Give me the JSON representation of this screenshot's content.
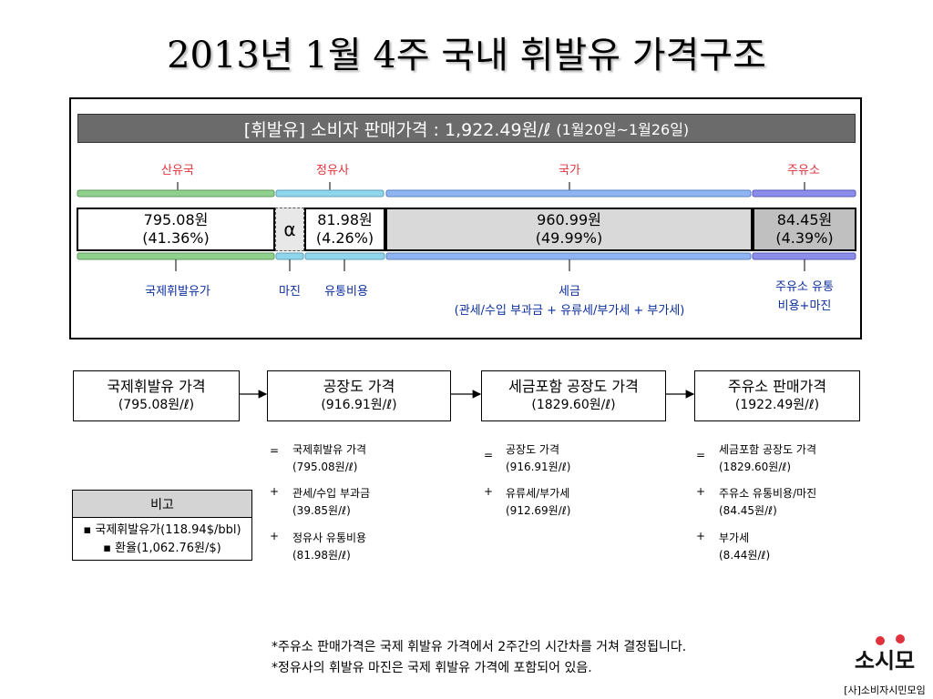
{
  "title": "2013년 1월 4주 국내 휘발유 가격구조",
  "header": {
    "main": "[휘발유] 소비자 판매가격 : 1,922.49원/ℓ",
    "period": "(1월20일~1월26일)"
  },
  "categories": {
    "oil_country": "산유국",
    "refiner": "정유사",
    "government": "국가",
    "gas_station": "주유소"
  },
  "segments": {
    "crude": {
      "value": "795.08원",
      "pct": "(41.36%)",
      "share": 41.36
    },
    "alpha": {
      "symbol": "α"
    },
    "refiner": {
      "value": "81.98원",
      "pct": "(4.26%)",
      "share": 4.26
    },
    "tax": {
      "value": "960.99원",
      "pct": "(49.99%)",
      "share": 49.99
    },
    "station": {
      "value": "84.45원",
      "pct": "(4.39%)",
      "share": 4.39
    }
  },
  "segment_notes": {
    "intl_price": "국제휘발유가",
    "margin": "마진",
    "dist_cost": "유통비용",
    "tax_line1": "세금",
    "tax_line2": "(관세/수입 부과금 + 유류세/부가세 + 부가세)",
    "station_line1": "주유소 유통",
    "station_line2": "비용+마진"
  },
  "flow": [
    {
      "name": "국제휘발유 가격",
      "value": "(795.08원/ℓ)"
    },
    {
      "name": "공장도 가격",
      "value": "(916.91원/ℓ)"
    },
    {
      "name": "세금포함 공장도 가격",
      "value": "(1829.60원/ℓ)"
    },
    {
      "name": "주유소 판매가격",
      "value": "(1922.49원/ℓ)"
    }
  ],
  "breakdown": {
    "col1": [
      {
        "op": "=",
        "line1": "국제휘발유 가격",
        "line2": "(795.08원/ℓ)"
      },
      {
        "op": "+",
        "line1": "관세/수입 부과금",
        "line2": "(39.85원/ℓ)"
      },
      {
        "op": "+",
        "line1": "정유사 유통비용",
        "line2": "(81.98원/ℓ)"
      }
    ],
    "col2": [
      {
        "op": "=",
        "line1": "공장도 가격",
        "line2": "(916.91원/ℓ)"
      },
      {
        "op": "+",
        "line1": "유류세/부가세",
        "line2": "(912.69원/ℓ)"
      }
    ],
    "col3": [
      {
        "op": "=",
        "line1": "세금포함 공장도 가격",
        "line2": "(1829.60원/ℓ)"
      },
      {
        "op": "+",
        "line1": "주유소 유통비용/마진",
        "line2": "(84.45원/ℓ)"
      },
      {
        "op": "+",
        "line1": "부가세",
        "line2": "(8.44원/ℓ)"
      }
    ]
  },
  "note": {
    "header": "비고",
    "line1": "▪ 국제휘발유가(118.94$/bbl)",
    "line2": "▪ 환율(1,062.76원/$)"
  },
  "footnotes": [
    "*주유소 판매가격은 국제 휘발유 가격에서 2주간의 시간차를 거쳐 결정됩니다.",
    "*정유사의 휘발유 마진은 국제 휘발유 가격에 포함되어 있음."
  ],
  "logo": {
    "mark": "소시모",
    "org": "[사]소비자시민모임"
  },
  "colors": {
    "oil_country": "#8fd18c",
    "refiner": "#8fd5ec",
    "government": "#8fb4f2",
    "gas_station": "#8c8cea",
    "category_text": "#e0323c",
    "note_text": "#0d2e9e",
    "header_bar": "#6b6b6b",
    "tax_fill": "#d9d9d9",
    "station_fill": "#c0c0c0"
  }
}
